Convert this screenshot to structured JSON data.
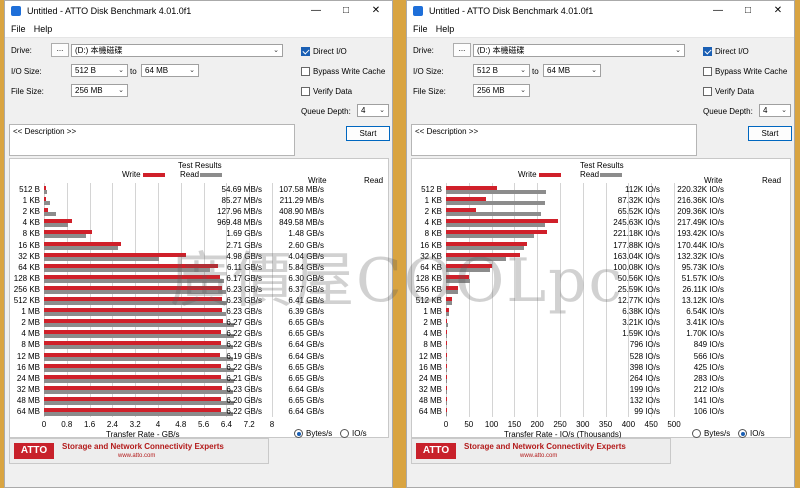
{
  "windows": [
    {
      "id": "left",
      "title": "Untitled - ATTO Disk Benchmark 4.01.0f1",
      "menu": [
        "File",
        "Help"
      ],
      "drive_label": "Drive:",
      "browse_label": "...",
      "drive_value": "(D:) 本機磁碟",
      "io_size_label": "I/O Size:",
      "io_from": "512 B",
      "io_to_label": "to",
      "io_to": "64 MB",
      "file_size_label": "File Size:",
      "file_size": "256 MB",
      "direct_io": "Direct I/O",
      "bypass": "Bypass Write Cache",
      "verify": "Verify Data",
      "queue_label": "Queue Depth:",
      "queue_value": "4",
      "description": "<< Description >>",
      "start": "Start",
      "test_results": "Test Results",
      "legend_write": "Write",
      "legend_read": "Read",
      "col_write": "Write",
      "col_read": "Read",
      "xaxis_label": "Transfer Rate - GB/s",
      "radio_bytes": "Bytes/s",
      "radio_io": "IO/s",
      "radio_selected": "bytes",
      "ticks": [
        "0",
        "0.8",
        "1.6",
        "2.4",
        "3.2",
        "4",
        "4.8",
        "5.6",
        "6.4",
        "7.2",
        "8"
      ],
      "rows": [
        {
          "size": "512 B",
          "write": "54.69 MB/s",
          "read": "107.58 MB/s"
        },
        {
          "size": "1 KB",
          "write": "85.27 MB/s",
          "read": "211.29 MB/s"
        },
        {
          "size": "2 KB",
          "write": "127.96 MB/s",
          "read": "408.90 MB/s"
        },
        {
          "size": "4 KB",
          "write": "969.48 MB/s",
          "read": "849.58 MB/s"
        },
        {
          "size": "8 KB",
          "write": "1.69 GB/s",
          "read": "1.48 GB/s"
        },
        {
          "size": "16 KB",
          "write": "2.71 GB/s",
          "read": "2.60 GB/s"
        },
        {
          "size": "32 KB",
          "write": "4.98 GB/s",
          "read": "4.04 GB/s"
        },
        {
          "size": "64 KB",
          "write": "6.11 GB/s",
          "read": "5.84 GB/s"
        },
        {
          "size": "128 KB",
          "write": "6.17 GB/s",
          "read": "6.30 GB/s"
        },
        {
          "size": "256 KB",
          "write": "6.23 GB/s",
          "read": "6.37 GB/s"
        },
        {
          "size": "512 KB",
          "write": "6.23 GB/s",
          "read": "6.41 GB/s"
        },
        {
          "size": "1 MB",
          "write": "6.23 GB/s",
          "read": "6.39 GB/s"
        },
        {
          "size": "2 MB",
          "write": "6.27 GB/s",
          "read": "6.65 GB/s"
        },
        {
          "size": "4 MB",
          "write": "6.22 GB/s",
          "read": "6.65 GB/s"
        },
        {
          "size": "8 MB",
          "write": "6.22 GB/s",
          "read": "6.64 GB/s"
        },
        {
          "size": "12 MB",
          "write": "6.19 GB/s",
          "read": "6.64 GB/s"
        },
        {
          "size": "16 MB",
          "write": "6.22 GB/s",
          "read": "6.65 GB/s"
        },
        {
          "size": "24 MB",
          "write": "6.21 GB/s",
          "read": "6.65 GB/s"
        },
        {
          "size": "32 MB",
          "write": "6.23 GB/s",
          "read": "6.64 GB/s"
        },
        {
          "size": "48 MB",
          "write": "6.20 GB/s",
          "read": "6.65 GB/s"
        },
        {
          "size": "64 MB",
          "write": "6.22 GB/s",
          "read": "6.64 GB/s"
        }
      ],
      "footer_logo": "ATTO",
      "footer_tagline": "Storage and Network Connectivity Experts",
      "footer_url": "www.atto.com"
    },
    {
      "id": "right",
      "title": "Untitled - ATTO Disk Benchmark 4.01.0f1",
      "menu": [
        "File",
        "Help"
      ],
      "drive_label": "Drive:",
      "browse_label": "...",
      "drive_value": "(D:) 本機磁碟",
      "io_size_label": "I/O Size:",
      "io_from": "512 B",
      "io_to_label": "to",
      "io_to": "64 MB",
      "file_size_label": "File Size:",
      "file_size": "256 MB",
      "direct_io": "Direct I/O",
      "bypass": "Bypass Write Cache",
      "verify": "Verify Data",
      "queue_label": "Queue Depth:",
      "queue_value": "4",
      "description": "<< Description >>",
      "start": "Start",
      "test_results": "Test Results",
      "legend_write": "Write",
      "legend_read": "Read",
      "col_write": "Write",
      "col_read": "Read",
      "xaxis_label": "Transfer Rate - IO/s (Thousands)",
      "radio_bytes": "Bytes/s",
      "radio_io": "IO/s",
      "radio_selected": "io",
      "ticks": [
        "0",
        "50",
        "100",
        "150",
        "200",
        "250",
        "300",
        "350",
        "400",
        "450",
        "500"
      ],
      "rows": [
        {
          "size": "512 B",
          "write": "112K IO/s",
          "read": "220.32K IO/s"
        },
        {
          "size": "1 KB",
          "write": "87.32K IO/s",
          "read": "216.36K IO/s"
        },
        {
          "size": "2 KB",
          "write": "65.52K IO/s",
          "read": "209.36K IO/s"
        },
        {
          "size": "4 KB",
          "write": "245.63K IO/s",
          "read": "217.49K IO/s"
        },
        {
          "size": "8 KB",
          "write": "221.18K IO/s",
          "read": "193.42K IO/s"
        },
        {
          "size": "16 KB",
          "write": "177.88K IO/s",
          "read": "170.44K IO/s"
        },
        {
          "size": "32 KB",
          "write": "163.04K IO/s",
          "read": "132.32K IO/s"
        },
        {
          "size": "64 KB",
          "write": "100.08K IO/s",
          "read": "95.73K IO/s"
        },
        {
          "size": "128 KB",
          "write": "50.56K IO/s",
          "read": "51.57K IO/s"
        },
        {
          "size": "256 KB",
          "write": "25.59K IO/s",
          "read": "26.11K IO/s"
        },
        {
          "size": "512 KB",
          "write": "12.77K IO/s",
          "read": "13.12K IO/s"
        },
        {
          "size": "1 MB",
          "write": "6.38K IO/s",
          "read": "6.54K IO/s"
        },
        {
          "size": "2 MB",
          "write": "3.21K IO/s",
          "read": "3.41K IO/s"
        },
        {
          "size": "4 MB",
          "write": "1.59K IO/s",
          "read": "1.70K IO/s"
        },
        {
          "size": "8 MB",
          "write": "796 IO/s",
          "read": "849 IO/s"
        },
        {
          "size": "12 MB",
          "write": "528 IO/s",
          "read": "566 IO/s"
        },
        {
          "size": "16 MB",
          "write": "398 IO/s",
          "read": "425 IO/s"
        },
        {
          "size": "24 MB",
          "write": "264 IO/s",
          "read": "283 IO/s"
        },
        {
          "size": "32 MB",
          "write": "199 IO/s",
          "read": "212 IO/s"
        },
        {
          "size": "48 MB",
          "write": "132 IO/s",
          "read": "141 IO/s"
        },
        {
          "size": "64 MB",
          "write": "99 IO/s",
          "read": "106 IO/s"
        }
      ],
      "footer_logo": "ATTO",
      "footer_tagline": "Storage and Network Connectivity Experts",
      "footer_url": "www.atto.com"
    }
  ],
  "watermark": "廣價屋COOLpc",
  "colors": {
    "write": "#d0202a",
    "read": "#8c8c8c",
    "background": "#d9a441"
  },
  "chart_data": [
    {
      "type": "bar",
      "title": "Test Results",
      "xlabel": "Transfer Rate - GB/s",
      "xlim": [
        0,
        8
      ],
      "categories": [
        "512 B",
        "1 KB",
        "2 KB",
        "4 KB",
        "8 KB",
        "16 KB",
        "32 KB",
        "64 KB",
        "128 KB",
        "256 KB",
        "512 KB",
        "1 MB",
        "2 MB",
        "4 MB",
        "8 MB",
        "12 MB",
        "16 MB",
        "24 MB",
        "32 MB",
        "48 MB",
        "64 MB"
      ],
      "series": [
        {
          "name": "Write",
          "values": [
            0.0547,
            0.0853,
            0.128,
            0.969,
            1.69,
            2.71,
            4.98,
            6.11,
            6.17,
            6.23,
            6.23,
            6.23,
            6.27,
            6.22,
            6.22,
            6.19,
            6.22,
            6.21,
            6.23,
            6.2,
            6.22
          ]
        },
        {
          "name": "Read",
          "values": [
            0.108,
            0.211,
            0.409,
            0.85,
            1.48,
            2.6,
            4.04,
            5.84,
            6.3,
            6.37,
            6.41,
            6.39,
            6.65,
            6.65,
            6.64,
            6.64,
            6.65,
            6.65,
            6.64,
            6.65,
            6.64
          ]
        }
      ]
    },
    {
      "type": "bar",
      "title": "Test Results",
      "xlabel": "Transfer Rate - IO/s (Thousands)",
      "xlim": [
        0,
        500
      ],
      "categories": [
        "512 B",
        "1 KB",
        "2 KB",
        "4 KB",
        "8 KB",
        "16 KB",
        "32 KB",
        "64 KB",
        "128 KB",
        "256 KB",
        "512 KB",
        "1 MB",
        "2 MB",
        "4 MB",
        "8 MB",
        "12 MB",
        "16 MB",
        "24 MB",
        "32 MB",
        "48 MB",
        "64 MB"
      ],
      "series": [
        {
          "name": "Write",
          "values": [
            112,
            87.32,
            65.52,
            245.63,
            221.18,
            177.88,
            163.04,
            100.08,
            50.56,
            25.59,
            12.77,
            6.38,
            3.21,
            1.59,
            0.796,
            0.528,
            0.398,
            0.264,
            0.199,
            0.132,
            0.099
          ]
        },
        {
          "name": "Read",
          "values": [
            220.32,
            216.36,
            209.36,
            217.49,
            193.42,
            170.44,
            132.32,
            95.73,
            51.57,
            26.11,
            13.12,
            6.54,
            3.41,
            1.7,
            0.849,
            0.566,
            0.425,
            0.283,
            0.212,
            0.141,
            0.106
          ]
        }
      ]
    }
  ]
}
